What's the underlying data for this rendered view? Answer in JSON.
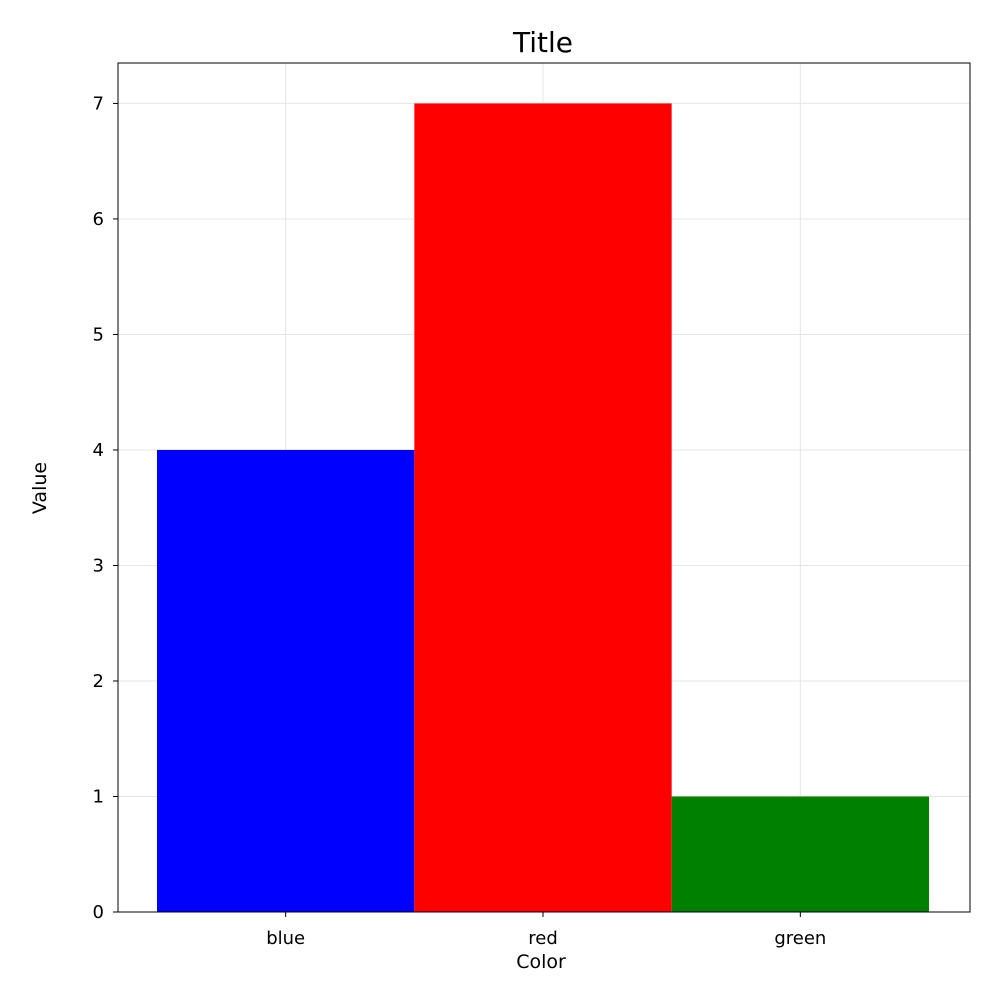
{
  "chart_data": {
    "type": "bar",
    "title": "Title",
    "xlabel": "Color",
    "ylabel": "Value",
    "categories": [
      "blue",
      "red",
      "green"
    ],
    "values": [
      4,
      7,
      1
    ],
    "bar_colors": [
      "#0000ff",
      "#ff0000",
      "#008000"
    ],
    "ylim": [
      0,
      7.35
    ],
    "yticks": [
      0,
      1,
      2,
      3,
      4,
      5,
      6,
      7
    ],
    "grid": true,
    "legend": "none"
  }
}
